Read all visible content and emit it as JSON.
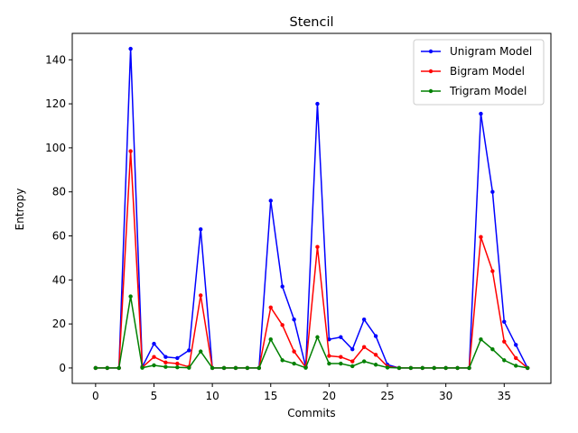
{
  "chart_data": {
    "type": "line",
    "title": "Stencil",
    "xlabel": "Commits",
    "ylabel": "Entropy",
    "xlim": [
      -2,
      39
    ],
    "ylim": [
      -7,
      152
    ],
    "xticks": [
      0,
      5,
      10,
      15,
      20,
      25,
      30,
      35
    ],
    "yticks": [
      0,
      20,
      40,
      60,
      80,
      100,
      120,
      140
    ],
    "grid": false,
    "legend_position": "top-right",
    "x": [
      0,
      1,
      2,
      3,
      4,
      5,
      6,
      7,
      8,
      9,
      10,
      11,
      12,
      13,
      14,
      15,
      16,
      17,
      18,
      19,
      20,
      21,
      22,
      23,
      24,
      25,
      26,
      27,
      28,
      29,
      30,
      31,
      32,
      33,
      34,
      35,
      36,
      37
    ],
    "series": [
      {
        "name": "Unigram Model",
        "color": "#0000ff",
        "values": [
          0,
          0,
          0,
          145,
          0.5,
          11,
          5,
          4.5,
          8,
          63,
          0,
          0,
          0,
          0,
          0,
          76,
          37,
          22,
          0.5,
          120,
          13,
          14,
          8.5,
          22,
          14.5,
          1.5,
          0,
          0,
          0,
          0,
          0,
          0,
          0,
          115.5,
          80,
          21,
          10.5,
          0
        ]
      },
      {
        "name": "Bigram Model",
        "color": "#ff0000",
        "values": [
          0,
          0,
          0,
          98.5,
          0.3,
          5,
          2.5,
          2,
          0.5,
          33,
          0,
          0,
          0,
          0,
          0,
          27.5,
          19.5,
          7.5,
          0.3,
          55,
          5.5,
          5,
          3,
          9.5,
          6,
          0.7,
          0,
          0,
          0,
          0,
          0,
          0,
          0,
          59.5,
          44,
          12,
          4.5,
          0
        ]
      },
      {
        "name": "Trigram Model",
        "color": "#008000",
        "values": [
          0,
          0,
          0,
          32.5,
          0.1,
          1.2,
          0.5,
          0.3,
          0.1,
          7.5,
          0,
          0,
          0,
          0,
          0,
          13,
          3.5,
          2,
          0.1,
          14,
          2,
          2,
          0.8,
          3,
          1.5,
          0.2,
          0,
          0,
          0,
          0,
          0,
          0,
          0,
          13,
          8.5,
          3.5,
          1,
          0
        ]
      }
    ]
  }
}
